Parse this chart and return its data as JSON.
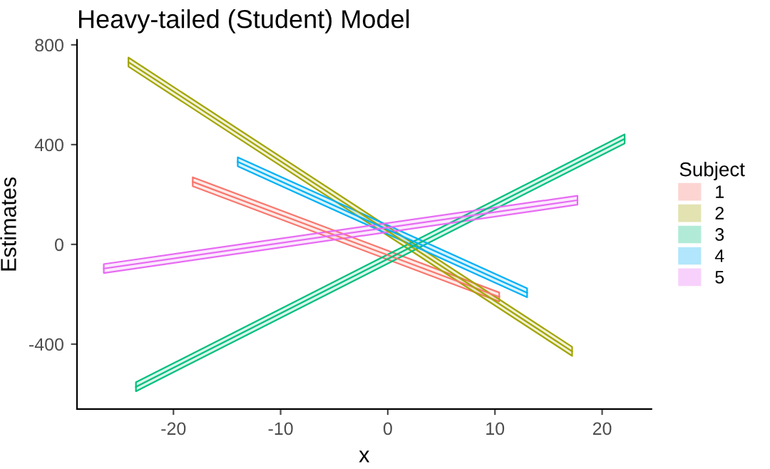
{
  "chart_data": {
    "type": "line",
    "title": "Heavy-tailed (Student) Model",
    "xlabel": "x",
    "ylabel": "Estimates",
    "legend_title": "Subject",
    "series": [
      {
        "name": "1",
        "color": "#F8766D",
        "x": [
          -18.2,
          10.4
        ],
        "values": [
          251,
          -211
        ],
        "lower": [
          233,
          -229
        ],
        "upper": [
          269,
          -193
        ]
      },
      {
        "name": "2",
        "color": "#A3A500",
        "x": [
          -24.2,
          17.2
        ],
        "values": [
          731,
          -429
        ],
        "lower": [
          713,
          -447
        ],
        "upper": [
          749,
          -411
        ]
      },
      {
        "name": "3",
        "color": "#00BF7D",
        "x": [
          -23.5,
          22.1
        ],
        "values": [
          -571,
          423
        ],
        "lower": [
          -589,
          405
        ],
        "upper": [
          -553,
          441
        ]
      },
      {
        "name": "4",
        "color": "#00B0F6",
        "x": [
          -14.0,
          13.0
        ],
        "values": [
          331,
          -194
        ],
        "lower": [
          313,
          -212
        ],
        "upper": [
          349,
          -176
        ]
      },
      {
        "name": "5",
        "color": "#E76BF3",
        "x": [
          -26.5,
          17.7
        ],
        "values": [
          -97,
          177
        ],
        "lower": [
          -115,
          159
        ],
        "upper": [
          -79,
          195
        ]
      }
    ],
    "xlim": [
      -29,
      24.6
    ],
    "ylim": [
      -660,
      820
    ],
    "xticks": [
      -20,
      -10,
      0,
      10,
      20
    ],
    "yticks": [
      -400,
      0,
      400,
      800
    ],
    "grid": false,
    "legend": "right",
    "marker": "none",
    "line_style": "solid"
  }
}
